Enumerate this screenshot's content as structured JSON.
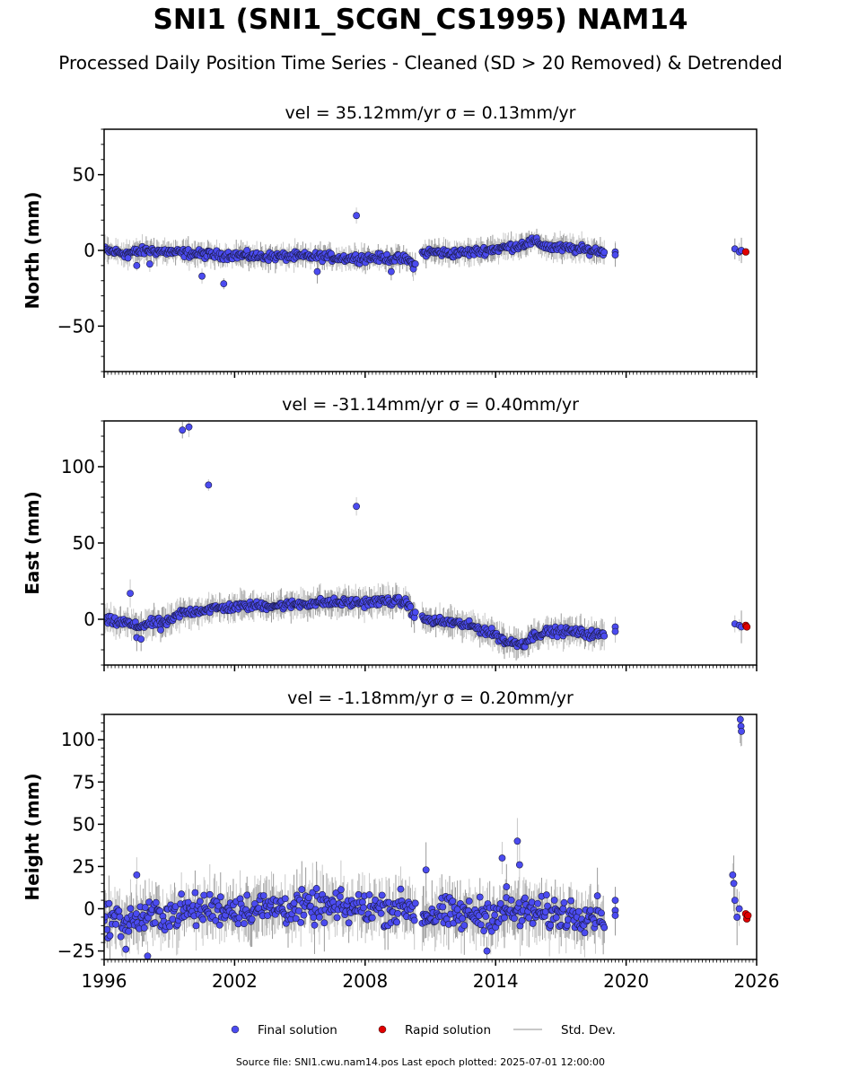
{
  "title": "SNI1 (SNI1_SCGN_CS1995) NAM14",
  "subtitle": "Processed Daily Position Time Series - Cleaned (SD > 20 Removed) & Detrended",
  "source_note": "Source file: SNI1.cwu.nam14.pos  Last epoch plotted: 2025-07-01 12:00:00",
  "colors": {
    "final": "#4b4bf0",
    "rapid": "#e00000",
    "stddev": "#c8c8c8"
  },
  "legend": [
    {
      "label": "Final solution",
      "marker": "dot",
      "color": "#4b4bf0"
    },
    {
      "label": "Rapid solution",
      "marker": "dot",
      "color": "#e00000"
    },
    {
      "label": "Std. Dev.",
      "marker": "line",
      "color": "#c8c8c8"
    }
  ],
  "chart_data": [
    {
      "type": "scatter",
      "panel": "north",
      "title_prefix": "vel = 35.12mm/yr",
      "title_sigma": "σ = 0.13mm/yr",
      "ylabel": "North (mm)",
      "xlim": [
        1996,
        2026
      ],
      "ylim": [
        -80,
        80
      ],
      "yticks": [
        -50,
        0,
        50
      ],
      "ytick_labels": [
        "−50",
        "0",
        "50"
      ],
      "xticks": [
        1996,
        2002,
        2008,
        2014,
        2020,
        2026
      ],
      "xtick_labels": [],
      "final_trend": [
        [
          1996.0,
          0
        ],
        [
          1996.5,
          -1
        ],
        [
          1997.0,
          -2
        ],
        [
          1998.0,
          0
        ],
        [
          1999.0,
          -1
        ],
        [
          2000.0,
          -2
        ],
        [
          2001.0,
          -3
        ],
        [
          2002.0,
          -3
        ],
        [
          2003.0,
          -4
        ],
        [
          2004.0,
          -4
        ],
        [
          2005.0,
          -4
        ],
        [
          2006.0,
          -4
        ],
        [
          2007.0,
          -5
        ],
        [
          2008.0,
          -5
        ],
        [
          2009.0,
          -5
        ],
        [
          2009.9,
          -6
        ],
        [
          2010.3,
          -10
        ],
        [
          2010.6,
          -2
        ],
        [
          2011.0,
          -1
        ],
        [
          2012.0,
          -2
        ],
        [
          2013.0,
          -1
        ],
        [
          2014.0,
          1
        ],
        [
          2015.0,
          3
        ],
        [
          2015.7,
          6
        ],
        [
          2016.5,
          2
        ],
        [
          2017.5,
          1
        ],
        [
          2018.5,
          0
        ],
        [
          2019.0,
          -1
        ]
      ],
      "final_isolated": [
        [
          2019.5,
          -1
        ],
        [
          2019.5,
          -3
        ],
        [
          2025.0,
          1
        ],
        [
          2025.2,
          -1
        ],
        [
          2025.3,
          0
        ]
      ],
      "outliers": [
        [
          1997.5,
          -10
        ],
        [
          2000.5,
          -17
        ],
        [
          2001.5,
          -22
        ],
        [
          2007.6,
          23
        ],
        [
          2005.8,
          -14
        ],
        [
          2009.2,
          -14
        ],
        [
          1997.1,
          -5
        ],
        [
          1998.1,
          -9
        ]
      ],
      "rapid": [
        [
          2025.5,
          -1
        ]
      ],
      "spread": 4,
      "sd": 5
    },
    {
      "type": "scatter",
      "panel": "east",
      "title_prefix": "vel = -31.14mm/yr",
      "title_sigma": "σ = 0.40mm/yr",
      "ylabel": "East (mm)",
      "xlim": [
        1996,
        2026
      ],
      "ylim": [
        -30,
        130
      ],
      "yticks": [
        0,
        50,
        100
      ],
      "ytick_labels": [
        "0",
        "50",
        "100"
      ],
      "xticks": [
        1996,
        2002,
        2008,
        2014,
        2020,
        2026
      ],
      "xtick_labels": [],
      "final_trend": [
        [
          1996.0,
          0
        ],
        [
          1996.5,
          -2
        ],
        [
          1997.0,
          -2
        ],
        [
          1997.5,
          -5
        ],
        [
          1998.0,
          -3
        ],
        [
          1998.5,
          -2
        ],
        [
          1999.0,
          -2
        ],
        [
          1999.5,
          4
        ],
        [
          2000.0,
          5
        ],
        [
          2001.0,
          7
        ],
        [
          2002.0,
          8
        ],
        [
          2003.0,
          9
        ],
        [
          2004.0,
          9
        ],
        [
          2005.0,
          10
        ],
        [
          2006.0,
          11
        ],
        [
          2007.0,
          11
        ],
        [
          2008.0,
          11
        ],
        [
          2009.0,
          12
        ],
        [
          2009.9,
          11
        ],
        [
          2010.3,
          2
        ],
        [
          2011.0,
          -1
        ],
        [
          2012.0,
          -2
        ],
        [
          2013.0,
          -5
        ],
        [
          2014.0,
          -10
        ],
        [
          2014.5,
          -15
        ],
        [
          2015.3,
          -16
        ],
        [
          2015.8,
          -10
        ],
        [
          2016.5,
          -8
        ],
        [
          2017.5,
          -8
        ],
        [
          2018.5,
          -10
        ],
        [
          2019.0,
          -10
        ]
      ],
      "final_isolated": [
        [
          2019.5,
          -5
        ],
        [
          2019.5,
          -8
        ],
        [
          2025.0,
          -3
        ],
        [
          2025.2,
          -4
        ],
        [
          2025.3,
          -5
        ]
      ],
      "outliers": [
        [
          1999.6,
          124
        ],
        [
          1999.9,
          126
        ],
        [
          2000.8,
          88
        ],
        [
          2007.6,
          74
        ],
        [
          1997.2,
          17
        ],
        [
          1997.5,
          -12
        ],
        [
          1997.7,
          -13
        ],
        [
          1998.6,
          -7
        ]
      ],
      "rapid": [
        [
          2025.5,
          -4
        ],
        [
          2025.55,
          -5
        ]
      ],
      "spread": 4,
      "sd": 6
    },
    {
      "type": "scatter",
      "panel": "height",
      "title_prefix": "vel = -1.18mm/yr",
      "title_sigma": "σ = 0.20mm/yr",
      "ylabel": "Height (mm)",
      "xlim": [
        1996,
        2026
      ],
      "ylim": [
        -30,
        115
      ],
      "yticks": [
        -25,
        0,
        25,
        50,
        75,
        100
      ],
      "ytick_labels": [
        "−25",
        "0",
        "25",
        "50",
        "75",
        "100"
      ],
      "xticks": [
        1996,
        2002,
        2008,
        2014,
        2020,
        2026
      ],
      "xtick_labels": [
        "1996",
        "2002",
        "2008",
        "2014",
        "2020",
        "2026"
      ],
      "final_trend": [
        [
          1996.0,
          -5
        ],
        [
          1997.0,
          -8
        ],
        [
          1998.0,
          -5
        ],
        [
          1999.0,
          -3
        ],
        [
          2000.0,
          -1
        ],
        [
          2001.0,
          0
        ],
        [
          2002.0,
          0
        ],
        [
          2003.0,
          0
        ],
        [
          2004.0,
          1
        ],
        [
          2005.0,
          0
        ],
        [
          2006.0,
          1
        ],
        [
          2007.0,
          0
        ],
        [
          2008.0,
          1
        ],
        [
          2009.0,
          0
        ],
        [
          2010.0,
          1
        ],
        [
          2010.6,
          -4
        ],
        [
          2011.5,
          -3
        ],
        [
          2012.5,
          -4
        ],
        [
          2013.5,
          -3
        ],
        [
          2014.5,
          -2
        ],
        [
          2015.5,
          -2
        ],
        [
          2016.5,
          -3
        ],
        [
          2017.5,
          -3
        ],
        [
          2018.5,
          -3
        ],
        [
          2019.0,
          -3
        ]
      ],
      "final_isolated": [
        [
          2019.5,
          5
        ],
        [
          2019.5,
          -1
        ],
        [
          2019.5,
          -4
        ],
        [
          2024.9,
          20
        ],
        [
          2024.95,
          15
        ],
        [
          2025.0,
          5
        ],
        [
          2025.1,
          -5
        ],
        [
          2025.2,
          0
        ],
        [
          2025.25,
          112
        ],
        [
          2025.28,
          108
        ],
        [
          2025.3,
          105
        ]
      ],
      "outliers": [
        [
          2010.8,
          23
        ],
        [
          2014.3,
          30
        ],
        [
          2015.0,
          40
        ],
        [
          2015.1,
          26
        ],
        [
          2014.5,
          13
        ],
        [
          2013.6,
          -25
        ],
        [
          1997.0,
          -24
        ],
        [
          1997.5,
          20
        ],
        [
          1998.0,
          -28
        ]
      ],
      "rapid": [
        [
          2025.5,
          -3
        ],
        [
          2025.55,
          -6
        ],
        [
          2025.6,
          -4
        ]
      ],
      "spread": 14,
      "sd": 10
    }
  ]
}
